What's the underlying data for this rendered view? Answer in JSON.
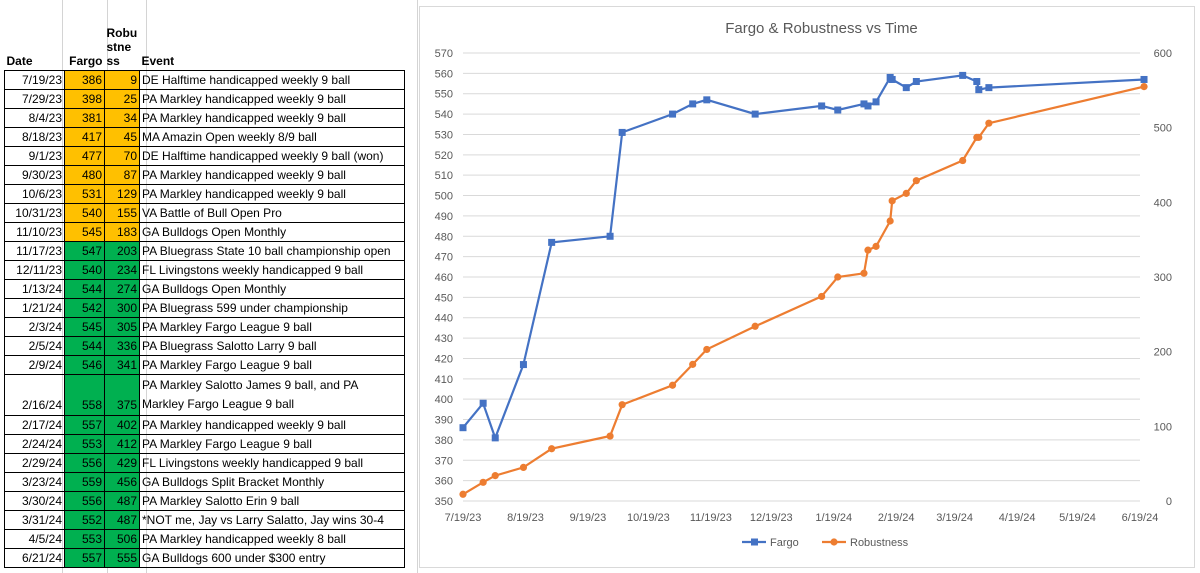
{
  "table": {
    "headers": {
      "date": "Date",
      "fargo": "Fargo",
      "robustness": "Robustness",
      "event": "Event"
    },
    "rows": [
      {
        "date": "7/19/23",
        "fargo": "386",
        "robustness": "9",
        "event": "DE Halftime handicapped weekly 9 ball",
        "color": "orange"
      },
      {
        "date": "7/29/23",
        "fargo": "398",
        "robustness": "25",
        "event": "PA Markley handicapped weekly 9 ball",
        "color": "orange"
      },
      {
        "date": "8/4/23",
        "fargo": "381",
        "robustness": "34",
        "event": "PA Markley handicapped weekly 9 ball",
        "color": "orange"
      },
      {
        "date": "8/18/23",
        "fargo": "417",
        "robustness": "45",
        "event": "MA Amazin Open weekly 8/9 ball",
        "color": "orange"
      },
      {
        "date": "9/1/23",
        "fargo": "477",
        "robustness": "70",
        "event": "DE Halftime handicapped weekly 9 ball (won)",
        "color": "orange"
      },
      {
        "date": "9/30/23",
        "fargo": "480",
        "robustness": "87",
        "event": "PA Markley handicapped weekly 9 ball",
        "color": "orange"
      },
      {
        "date": "10/6/23",
        "fargo": "531",
        "robustness": "129",
        "event": "PA Markley handicapped weekly 9 ball",
        "color": "orange"
      },
      {
        "date": "10/31/23",
        "fargo": "540",
        "robustness": "155",
        "event": "VA Battle of Bull Open Pro",
        "color": "orange"
      },
      {
        "date": "11/10/23",
        "fargo": "545",
        "robustness": "183",
        "event": "GA Bulldogs Open Monthly",
        "color": "orange"
      },
      {
        "date": "11/17/23",
        "fargo": "547",
        "robustness": "203",
        "event": "PA Bluegrass State 10 ball championship open",
        "color": "green"
      },
      {
        "date": "12/11/23",
        "fargo": "540",
        "robustness": "234",
        "event": "FL Livingstons weekly handicapped 9 ball",
        "color": "green"
      },
      {
        "date": "1/13/24",
        "fargo": "544",
        "robustness": "274",
        "event": "GA Bulldogs Open Monthly",
        "color": "green"
      },
      {
        "date": "1/21/24",
        "fargo": "542",
        "robustness": "300",
        "event": "PA Bluegrass 599 under championship",
        "color": "green"
      },
      {
        "date": "2/3/24",
        "fargo": "545",
        "robustness": "305",
        "event": "PA Markley Fargo League 9 ball",
        "color": "green"
      },
      {
        "date": "2/5/24",
        "fargo": "544",
        "robustness": "336",
        "event": "PA Bluegrass Salotto Larry 9 ball",
        "color": "green"
      },
      {
        "date": "2/9/24",
        "fargo": "546",
        "robustness": "341",
        "event": "PA Markley Fargo League 9 ball",
        "color": "green"
      },
      {
        "date": "2/16/24",
        "fargo": "558",
        "robustness": "375",
        "event": "PA Markley Salotto James 9 ball, and PA Markley Fargo League 9 ball",
        "color": "green",
        "tall": true
      },
      {
        "date": "2/17/24",
        "fargo": "557",
        "robustness": "402",
        "event": "PA Markley handicapped weekly 9 ball",
        "color": "green"
      },
      {
        "date": "2/24/24",
        "fargo": "553",
        "robustness": "412",
        "event": "PA Markley Fargo League 9 ball",
        "color": "green"
      },
      {
        "date": "2/29/24",
        "fargo": "556",
        "robustness": "429",
        "event": "FL Livingstons weekly handicapped 9 ball",
        "color": "green"
      },
      {
        "date": "3/23/24",
        "fargo": "559",
        "robustness": "456",
        "event": "GA Bulldogs Split Bracket Monthly",
        "color": "green"
      },
      {
        "date": "3/30/24",
        "fargo": "556",
        "robustness": "487",
        "event": "PA Markley Salotto Erin 9 ball",
        "color": "green"
      },
      {
        "date": "3/31/24",
        "fargo": "552",
        "robustness": "487",
        "event": "*NOT me, Jay vs Larry Salatto, Jay wins 30-4",
        "color": "green"
      },
      {
        "date": "4/5/24",
        "fargo": "553",
        "robustness": "506",
        "event": "PA Markley handicapped weekly 8 ball",
        "color": "green"
      },
      {
        "date": "6/21/24",
        "fargo": "557",
        "robustness": "555",
        "event": "GA Bulldogs 600 under $300 entry",
        "color": "green"
      }
    ],
    "colors": {
      "orange": "#ffc000",
      "green": "#00b050"
    }
  },
  "chart_data": {
    "type": "line",
    "title": "Fargo & Robustness vs Time",
    "xlabel": "",
    "x": [
      "2023-07-19",
      "2023-07-29",
      "2023-08-04",
      "2023-08-18",
      "2023-09-01",
      "2023-09-30",
      "2023-10-06",
      "2023-10-31",
      "2023-11-10",
      "2023-11-17",
      "2023-12-11",
      "2024-01-13",
      "2024-01-21",
      "2024-02-03",
      "2024-02-05",
      "2024-02-09",
      "2024-02-16",
      "2024-02-17",
      "2024-02-24",
      "2024-02-29",
      "2024-03-23",
      "2024-03-30",
      "2024-03-31",
      "2024-04-05",
      "2024-06-21"
    ],
    "x_ticks": [
      "7/19/23",
      "8/19/23",
      "9/19/23",
      "10/19/23",
      "11/19/23",
      "12/19/23",
      "1/19/24",
      "2/19/24",
      "3/19/24",
      "4/19/24",
      "5/19/24",
      "6/19/24"
    ],
    "x_tick_dates": [
      "2023-07-19",
      "2023-08-19",
      "2023-09-19",
      "2023-10-19",
      "2023-11-19",
      "2023-12-19",
      "2024-01-19",
      "2024-02-19",
      "2024-03-19",
      "2024-04-19",
      "2024-05-19",
      "2024-06-19"
    ],
    "y_left": {
      "ylim": [
        350,
        570
      ],
      "ticks": [
        350,
        360,
        370,
        380,
        390,
        400,
        410,
        420,
        430,
        440,
        450,
        460,
        470,
        480,
        490,
        500,
        510,
        520,
        530,
        540,
        550,
        560,
        570
      ]
    },
    "y_right": {
      "ylim": [
        0,
        600
      ],
      "ticks": [
        0,
        100,
        200,
        300,
        400,
        500,
        600
      ]
    },
    "series": [
      {
        "name": "Fargo",
        "axis": "left",
        "color": "#4472c4",
        "marker": "square",
        "values": [
          386,
          398,
          381,
          417,
          477,
          480,
          531,
          540,
          545,
          547,
          540,
          544,
          542,
          545,
          544,
          546,
          558,
          557,
          553,
          556,
          559,
          556,
          552,
          553,
          557
        ]
      },
      {
        "name": "Robustness",
        "axis": "right",
        "color": "#ed7d31",
        "marker": "circle",
        "values": [
          9,
          25,
          34,
          45,
          70,
          87,
          129,
          155,
          183,
          203,
          234,
          274,
          300,
          305,
          336,
          341,
          375,
          402,
          412,
          429,
          456,
          487,
          487,
          506,
          555
        ]
      }
    ],
    "grid": true,
    "legend": "bottom"
  }
}
